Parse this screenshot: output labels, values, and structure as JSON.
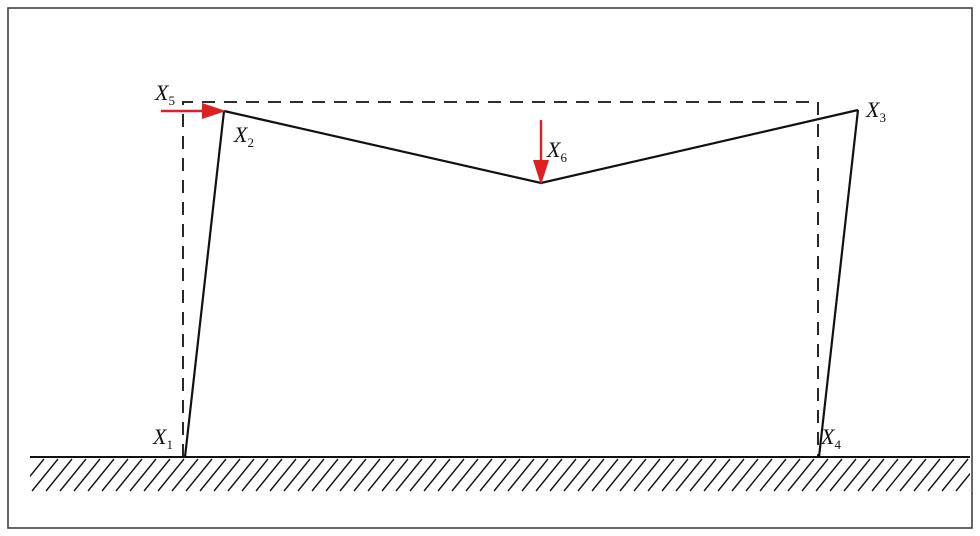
{
  "labels": {
    "x1": {
      "base": "X",
      "sub": "1"
    },
    "x2": {
      "base": "X",
      "sub": "2"
    },
    "x3": {
      "base": "X",
      "sub": "3"
    },
    "x4": {
      "base": "X",
      "sub": "4"
    },
    "x5": {
      "base": "X",
      "sub": "5"
    },
    "x6": {
      "base": "X",
      "sub": "6"
    }
  },
  "colors": {
    "frame": "#111111",
    "force_arrow": "#e02020",
    "border": "#333333"
  }
}
